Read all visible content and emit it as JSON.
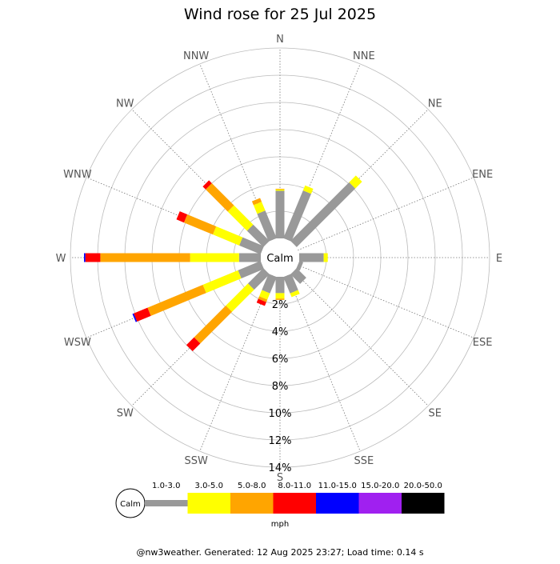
{
  "chart_data": {
    "type": "windrose",
    "title": "Wind rose for 25 Jul 2025",
    "center_label": "Calm",
    "directions": [
      "N",
      "NNE",
      "NE",
      "ENE",
      "E",
      "ESE",
      "SE",
      "SSE",
      "S",
      "SSW",
      "SW",
      "WSW",
      "W",
      "WNW",
      "NW",
      "NNW"
    ],
    "ring_labels": [
      "2%",
      "4%",
      "6%",
      "8%",
      "10%",
      "12%",
      "14%"
    ],
    "r_max_percent": 14,
    "speed_bins": [
      {
        "label": "1.0-3.0",
        "color": "#999999"
      },
      {
        "label": "3.0-5.0",
        "color": "#ffff00"
      },
      {
        "label": "5.0-8.0",
        "color": "#ffa500"
      },
      {
        "label": "8.0-11.0",
        "color": "#ff0000"
      },
      {
        "label": "11.0-15.0",
        "color": "#0000ff"
      },
      {
        "label": "15.0-20.0",
        "color": "#a020f0"
      },
      {
        "label": "20.0-50.0",
        "color": "#000000"
      }
    ],
    "unit_label": "mph",
    "series": [
      {
        "direction": "N",
        "values": [
          3.5,
          0.1,
          0.05,
          0,
          0,
          0,
          0
        ]
      },
      {
        "direction": "NNE",
        "values": [
          3.8,
          0.4,
          0,
          0,
          0,
          0,
          0
        ]
      },
      {
        "direction": "NE",
        "values": [
          6.1,
          0.7,
          0,
          0,
          0,
          0,
          0
        ]
      },
      {
        "direction": "ENE",
        "values": [
          0,
          0,
          0,
          0,
          0,
          0,
          0
        ]
      },
      {
        "direction": "E",
        "values": [
          1.8,
          0,
          0,
          0,
          0,
          0,
          0
        ]
      },
      {
        "direction": "ESE",
        "values": [
          0.3,
          0,
          0,
          0,
          0,
          0,
          0
        ]
      },
      {
        "direction": "SE",
        "values": [
          1.0,
          0,
          0,
          0,
          0,
          0,
          0
        ]
      },
      {
        "direction": "SSE",
        "values": [
          1.3,
          0.3,
          0,
          0,
          0,
          0,
          0
        ]
      },
      {
        "direction": "S",
        "values": [
          1.2,
          0.4,
          0.1,
          0,
          0,
          0,
          0
        ]
      },
      {
        "direction": "SSW",
        "values": [
          1.3,
          0.5,
          0.2,
          0.3,
          0,
          0,
          0
        ]
      },
      {
        "direction": "SW",
        "values": [
          1.6,
          2.3,
          3.3,
          0.8,
          0,
          0,
          0
        ]
      },
      {
        "direction": "WSW",
        "values": [
          1.8,
          2.8,
          4.4,
          1.1,
          0.1,
          0,
          0
        ]
      },
      {
        "direction": "W",
        "values": [
          1.6,
          3.6,
          6.6,
          1.1,
          0.1,
          0,
          0
        ]
      },
      {
        "direction": "WNW",
        "values": [
          1.7,
          2.1,
          2.3,
          0.6,
          0,
          0,
          0
        ]
      },
      {
        "direction": "NW",
        "values": [
          1.7,
          2.0,
          2.3,
          0.3,
          0,
          0,
          0
        ]
      },
      {
        "direction": "NNW",
        "values": [
          2.2,
          0.7,
          0.3,
          0,
          0,
          0,
          0
        ]
      }
    ],
    "directional_extras": [
      {
        "direction": "E",
        "bin": "3.0-5.0",
        "value": 0.3
      }
    ],
    "grid": true
  },
  "footer": "@nw3weather. Generated: 12 Aug 2025 23:27; Load time: 0.14 s"
}
